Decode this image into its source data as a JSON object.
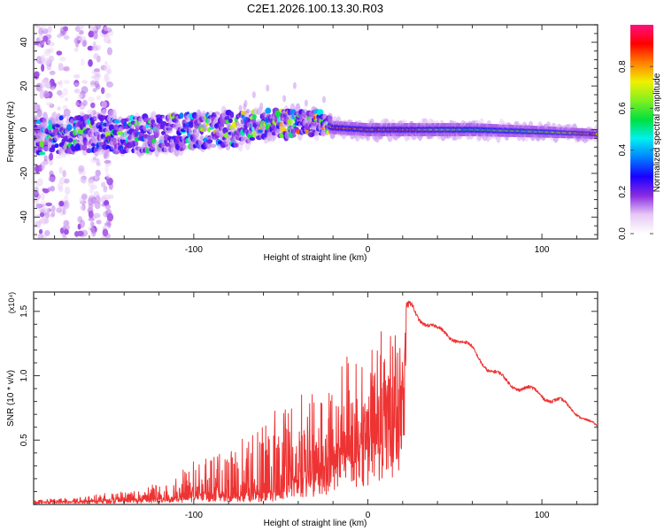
{
  "title": "C2E1.2026.100.13.30.R03",
  "chart_data": [
    {
      "type": "heatmap",
      "name": "spectrogram",
      "xlabel": "Height of straight line (km)",
      "ylabel": "Frequency (Hz)",
      "xlim": [
        -192,
        132
      ],
      "ylim": [
        -50,
        48
      ],
      "x_ticks": [
        -100,
        0,
        100
      ],
      "x_tick_labels": [
        "-100",
        "0",
        "100"
      ],
      "y_ticks": [
        -40,
        -20,
        0,
        20,
        40
      ],
      "y_tick_labels": [
        "-40",
        "-20",
        "0",
        "20",
        "40"
      ],
      "colorbar": {
        "label": "Normalized spectral amplitude",
        "range": [
          0.0,
          1.0
        ],
        "ticks": [
          0.0,
          0.2,
          0.4,
          0.6,
          0.8
        ],
        "tick_labels": [
          "0.0",
          "0.2",
          "0.4",
          "0.6",
          "0.8"
        ],
        "colormap": [
          "#ffffff",
          "#e6c8f5",
          "#8a2be2",
          "#1a00ff",
          "#0080ff",
          "#00f0f0",
          "#00e040",
          "#80f020",
          "#f0f000",
          "#ff8000",
          "#ff0000",
          "#ff1080"
        ]
      },
      "ridge": {
        "description": "dominant frequency band vs height",
        "x": [
          -190,
          -160,
          -130,
          -100,
          -80,
          -60,
          -40,
          -25,
          -20,
          0,
          20,
          60,
          100,
          132
        ],
        "center_hz": [
          -3,
          -2,
          -2,
          -1,
          0,
          2,
          3,
          3,
          1,
          0,
          0,
          0,
          -1,
          -2
        ],
        "halfwidth_hz": [
          8,
          8,
          8,
          8,
          8,
          7,
          6,
          5,
          3,
          3,
          3,
          3,
          2.5,
          2
        ],
        "peak_amplitude": [
          0.35,
          0.35,
          0.4,
          0.4,
          0.45,
          0.5,
          0.55,
          0.6,
          0.9,
          0.9,
          0.9,
          0.65,
          0.7,
          0.92
        ]
      },
      "scatter_regions": [
        {
          "description": "broadband noise streaks",
          "x_range": [
            -192,
            -150
          ],
          "y_range": [
            -50,
            48
          ]
        }
      ]
    },
    {
      "type": "line",
      "name": "snr",
      "xlabel": "Height of straight line (km)",
      "ylabel": "SNR (10 * v/v)",
      "y_multiplier_label": "(x10⁴)",
      "xlim": [
        -192,
        132
      ],
      "ylim": [
        0.0,
        1.65
      ],
      "x_ticks": [
        -100,
        0,
        100
      ],
      "x_tick_labels": [
        "-100",
        "0",
        "100"
      ],
      "y_ticks": [
        0.5,
        1.0,
        1.5
      ],
      "y_tick_labels": [
        "0.5",
        "1.0",
        "1.5"
      ],
      "series": [
        {
          "name": "SNR",
          "color": "#ee3333",
          "envelope": {
            "x": [
              -192,
              -170,
              -150,
              -130,
              -110,
              -100,
              -90,
              -80,
              -70,
              -60,
              -50,
              -40,
              -30,
              -20,
              -10,
              0,
              5,
              10,
              15,
              20,
              25,
              30,
              40,
              50,
              60,
              70,
              80,
              90,
              100,
              110,
              120,
              132
            ],
            "base": [
              0.02,
              0.03,
              0.04,
              0.05,
              0.06,
              0.1,
              0.1,
              0.1,
              0.1,
              0.1,
              0.15,
              0.25,
              0.3,
              0.45,
              0.6,
              0.75,
              0.9,
              1.0,
              1.05,
              1.3,
              1.45,
              1.4,
              1.3,
              1.25,
              1.15,
              1.0,
              0.9,
              0.85,
              0.8,
              0.75,
              0.68,
              0.57
            ],
            "peak": [
              0.05,
              0.06,
              0.1,
              0.12,
              0.25,
              0.35,
              0.45,
              0.55,
              0.55,
              0.7,
              0.8,
              0.9,
              1.0,
              1.1,
              1.3,
              1.2,
              1.4,
              1.5,
              1.65,
              1.55,
              1.62,
              1.5,
              1.4,
              1.35,
              1.25,
              1.1,
              1.0,
              0.95,
              0.9,
              0.85,
              0.75,
              0.62
            ]
          }
        }
      ]
    }
  ]
}
